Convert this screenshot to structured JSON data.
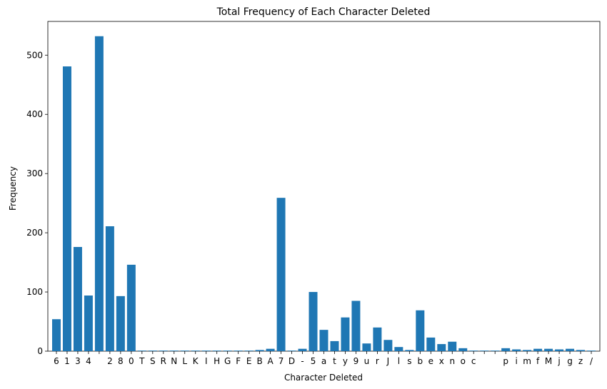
{
  "chart_data": {
    "type": "bar",
    "title": "Total Frequency of Each Character Deleted",
    "xlabel": "Character Deleted",
    "ylabel": "Frequency",
    "ylim": [
      0,
      557
    ],
    "yticks": [
      0,
      100,
      200,
      300,
      400,
      500
    ],
    "bar_color": "#1f77b4",
    "categories": [
      "6",
      "1",
      "3",
      "4",
      " ",
      "2",
      "8",
      "0",
      "T",
      "S",
      "R",
      "N",
      "L",
      "K",
      "I",
      "H",
      "G",
      "F",
      "E",
      "B",
      "A",
      "7",
      "D",
      "-",
      "5",
      "a",
      "t",
      "y",
      "9",
      "u",
      "r",
      "J",
      "l",
      "s",
      "b",
      "e",
      "x",
      "n",
      "o",
      "c",
      " ",
      " ",
      "p",
      "i",
      "m",
      "f",
      "M",
      "j",
      "g",
      "z",
      "/"
    ],
    "values": [
      54,
      481,
      176,
      94,
      532,
      211,
      93,
      146,
      1,
      1,
      1,
      1,
      1,
      1,
      1,
      1,
      1,
      1,
      1,
      2,
      4,
      259,
      1,
      4,
      100,
      36,
      17,
      57,
      85,
      13,
      40,
      19,
      7,
      2,
      69,
      23,
      12,
      16,
      5,
      1,
      1,
      1,
      5,
      3,
      2,
      4,
      4,
      3,
      4,
      2,
      1
    ]
  }
}
